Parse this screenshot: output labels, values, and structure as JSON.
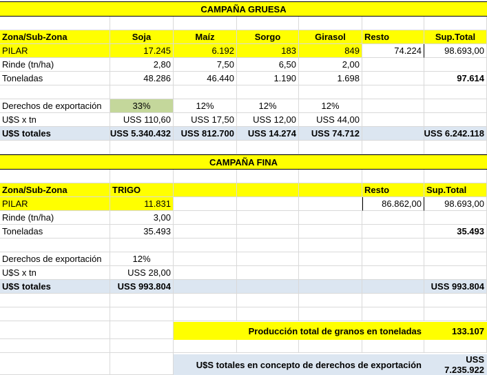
{
  "gruesa": {
    "title": "CAMPAÑA GRUESA",
    "headers": [
      "Zona/Sub-Zona",
      "Soja",
      "Maíz",
      "Sorgo",
      "Girasol",
      "Resto",
      "Sup.Total"
    ],
    "pilar": [
      "PILAR",
      "17.245",
      "6.192",
      "183",
      "849",
      "74.224",
      "98.693,00"
    ],
    "rinde": [
      "Rinde (tn/ha)",
      "2,80",
      "7,50",
      "6,50",
      "2,00",
      "",
      ""
    ],
    "toneladas": [
      "Toneladas",
      "48.286",
      "46.440",
      "1.190",
      "1.698",
      "",
      "97.614"
    ],
    "derechos": [
      "Derechos de exportación",
      "33%",
      "12%",
      "12%",
      "12%",
      "",
      ""
    ],
    "usd_tn": [
      "U$S x tn",
      "USS 110,60",
      "USS 17,50",
      "USS 12,00",
      "USS 44,00",
      "",
      ""
    ],
    "totales": [
      "U$S totales",
      "USS 5.340.432",
      "USS 812.700",
      "USS 14.274",
      "USS 74.712",
      "",
      "USS 6.242.118"
    ]
  },
  "fina": {
    "title": "CAMPAÑA FINA",
    "headers": [
      "Zona/Sub-Zona",
      "TRIGO",
      "",
      "",
      "",
      "Resto",
      "Sup.Total"
    ],
    "pilar": [
      "PILAR",
      "11.831",
      "",
      "",
      "",
      "86.862,00",
      "98.693,00"
    ],
    "rinde": [
      "Rinde (tn/ha)",
      "3,00",
      "",
      "",
      "",
      "",
      ""
    ],
    "toneladas": [
      "Toneladas",
      "35.493",
      "",
      "",
      "",
      "",
      "35.493"
    ],
    "derechos": [
      "Derechos de exportación",
      "12%",
      "",
      "",
      "",
      "",
      ""
    ],
    "usd_tn": [
      "U$S x tn",
      "USS 28,00",
      "",
      "",
      "",
      "",
      ""
    ],
    "totales": [
      "U$S totales",
      "USS 993.804",
      "",
      "",
      "",
      "",
      "USS 993.804"
    ]
  },
  "summary": {
    "produccion_label": "Producción total de granos en toneladas",
    "produccion_value": "133.107",
    "derechos_label": "U$S totales en concepto de derechos de exportación",
    "derechos_value": "USS 7.235.922"
  },
  "colors": {
    "highlight": "#ffff00",
    "total_row": "#dce6f1",
    "soja_rate": "#c4d79b"
  }
}
